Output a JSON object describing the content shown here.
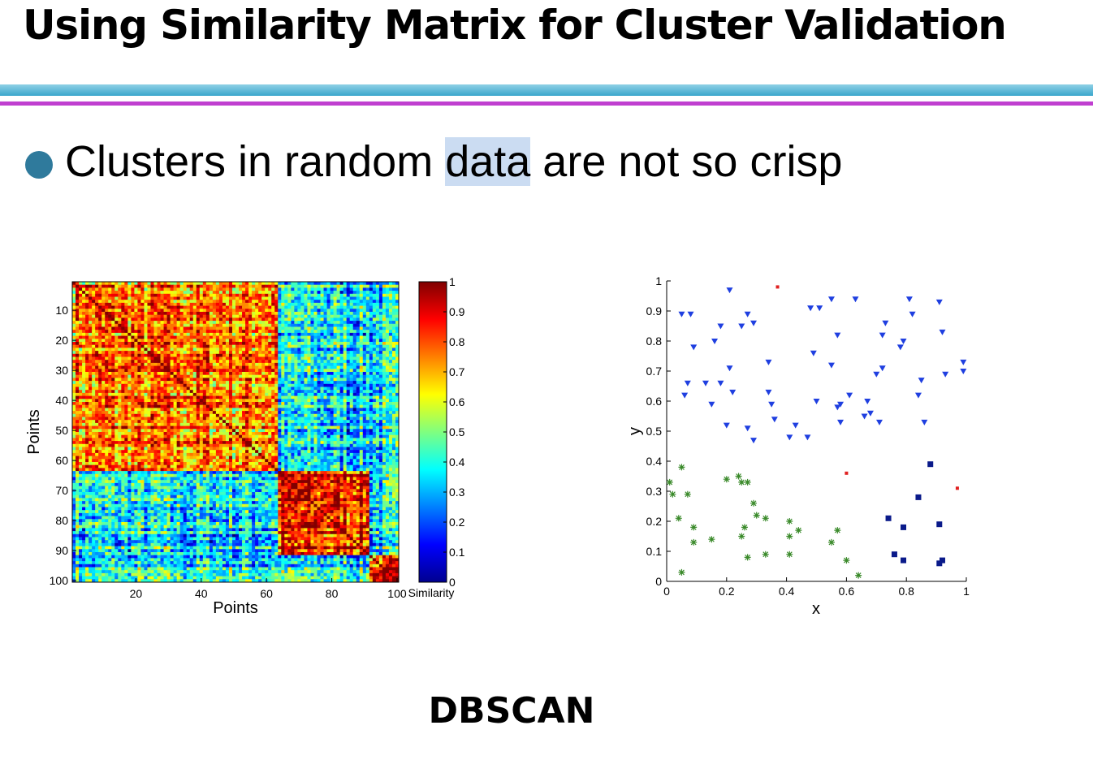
{
  "slide": {
    "title": "Using Similarity Matrix for Cluster Validation",
    "bullet": {
      "before": "Clusters in random ",
      "highlight": "data",
      "after": " are not so crisp"
    },
    "caption": "DBSCAN",
    "colors": {
      "rule_top": "#5bb8d8",
      "rule_bottom": "#c03fd0",
      "bullet": "#2f7a9c",
      "highlight": "#cbdcf2"
    }
  },
  "chart_data": [
    {
      "type": "heatmap",
      "xlabel": "Points",
      "ylabel": "Points",
      "colorbar_label": "Similarity",
      "n": 100,
      "xticks": [
        20,
        40,
        60,
        80,
        100
      ],
      "yticks": [
        10,
        20,
        30,
        40,
        50,
        60,
        70,
        80,
        90,
        100
      ],
      "clim": [
        0,
        1
      ],
      "colorbar_ticks": [
        0,
        0.1,
        0.2,
        0.3,
        0.4,
        0.5,
        0.6,
        0.7,
        0.8,
        0.9,
        1
      ],
      "colormap": "jet",
      "clusters": [
        {
          "start": 1,
          "end": 63,
          "within": 0.75
        },
        {
          "start": 64,
          "end": 91,
          "within": 0.85
        },
        {
          "start": 92,
          "end": 100,
          "within": 0.8
        }
      ],
      "between_cluster_similarity": 0.35
    },
    {
      "type": "scatter",
      "xlabel": "x",
      "ylabel": "y",
      "xlim": [
        0,
        1
      ],
      "ylim": [
        0,
        1
      ],
      "xticks": [
        0,
        0.2,
        0.4,
        0.6,
        0.8,
        1
      ],
      "yticks": [
        0,
        0.1,
        0.2,
        0.3,
        0.4,
        0.5,
        0.6,
        0.7,
        0.8,
        0.9,
        1
      ],
      "series": [
        {
          "marker": "triangle-down",
          "color": "#1f3fe0",
          "points": [
            [
              0.05,
              0.89
            ],
            [
              0.08,
              0.89
            ],
            [
              0.21,
              0.97
            ],
            [
              0.18,
              0.85
            ],
            [
              0.25,
              0.85
            ],
            [
              0.27,
              0.89
            ],
            [
              0.29,
              0.86
            ],
            [
              0.48,
              0.91
            ],
            [
              0.51,
              0.91
            ],
            [
              0.55,
              0.94
            ],
            [
              0.63,
              0.94
            ],
            [
              0.81,
              0.94
            ],
            [
              0.91,
              0.93
            ],
            [
              0.73,
              0.86
            ],
            [
              0.82,
              0.89
            ],
            [
              0.72,
              0.82
            ],
            [
              0.57,
              0.82
            ],
            [
              0.78,
              0.78
            ],
            [
              0.79,
              0.8
            ],
            [
              0.92,
              0.83
            ],
            [
              0.09,
              0.78
            ],
            [
              0.16,
              0.8
            ],
            [
              0.34,
              0.73
            ],
            [
              0.49,
              0.76
            ],
            [
              0.55,
              0.72
            ],
            [
              0.21,
              0.71
            ],
            [
              0.72,
              0.71
            ],
            [
              0.7,
              0.69
            ],
            [
              0.99,
              0.73
            ],
            [
              0.99,
              0.7
            ],
            [
              0.93,
              0.69
            ],
            [
              0.07,
              0.66
            ],
            [
              0.13,
              0.66
            ],
            [
              0.18,
              0.66
            ],
            [
              0.06,
              0.62
            ],
            [
              0.22,
              0.63
            ],
            [
              0.34,
              0.63
            ],
            [
              0.15,
              0.59
            ],
            [
              0.35,
              0.59
            ],
            [
              0.5,
              0.6
            ],
            [
              0.58,
              0.59
            ],
            [
              0.61,
              0.62
            ],
            [
              0.67,
              0.6
            ],
            [
              0.84,
              0.62
            ],
            [
              0.85,
              0.67
            ],
            [
              0.57,
              0.58
            ],
            [
              0.68,
              0.56
            ],
            [
              0.66,
              0.55
            ],
            [
              0.71,
              0.53
            ],
            [
              0.36,
              0.54
            ],
            [
              0.58,
              0.53
            ],
            [
              0.86,
              0.53
            ],
            [
              0.2,
              0.52
            ],
            [
              0.27,
              0.51
            ],
            [
              0.43,
              0.52
            ],
            [
              0.29,
              0.47
            ],
            [
              0.41,
              0.48
            ],
            [
              0.47,
              0.48
            ]
          ]
        },
        {
          "marker": "asterisk",
          "color": "#3a8a2a",
          "points": [
            [
              0.05,
              0.38
            ],
            [
              0.01,
              0.33
            ],
            [
              0.02,
              0.29
            ],
            [
              0.07,
              0.29
            ],
            [
              0.2,
              0.34
            ],
            [
              0.24,
              0.35
            ],
            [
              0.25,
              0.33
            ],
            [
              0.27,
              0.33
            ],
            [
              0.29,
              0.26
            ],
            [
              0.3,
              0.22
            ],
            [
              0.33,
              0.21
            ],
            [
              0.04,
              0.21
            ],
            [
              0.09,
              0.18
            ],
            [
              0.09,
              0.13
            ],
            [
              0.15,
              0.14
            ],
            [
              0.26,
              0.18
            ],
            [
              0.25,
              0.15
            ],
            [
              0.41,
              0.2
            ],
            [
              0.44,
              0.17
            ],
            [
              0.41,
              0.15
            ],
            [
              0.57,
              0.17
            ],
            [
              0.55,
              0.13
            ],
            [
              0.27,
              0.08
            ],
            [
              0.33,
              0.09
            ],
            [
              0.41,
              0.09
            ],
            [
              0.6,
              0.07
            ],
            [
              0.64,
              0.02
            ],
            [
              0.05,
              0.03
            ]
          ]
        },
        {
          "marker": "square",
          "color": "#0a1a8a",
          "points": [
            [
              0.88,
              0.39
            ],
            [
              0.84,
              0.28
            ],
            [
              0.74,
              0.21
            ],
            [
              0.79,
              0.18
            ],
            [
              0.91,
              0.19
            ],
            [
              0.76,
              0.09
            ],
            [
              0.79,
              0.07
            ],
            [
              0.92,
              0.07
            ],
            [
              0.91,
              0.06
            ]
          ]
        },
        {
          "marker": "dot",
          "color": "#e02020",
          "points": [
            [
              0.37,
              0.98
            ],
            [
              0.6,
              0.36
            ],
            [
              0.97,
              0.31
            ]
          ]
        }
      ]
    }
  ]
}
